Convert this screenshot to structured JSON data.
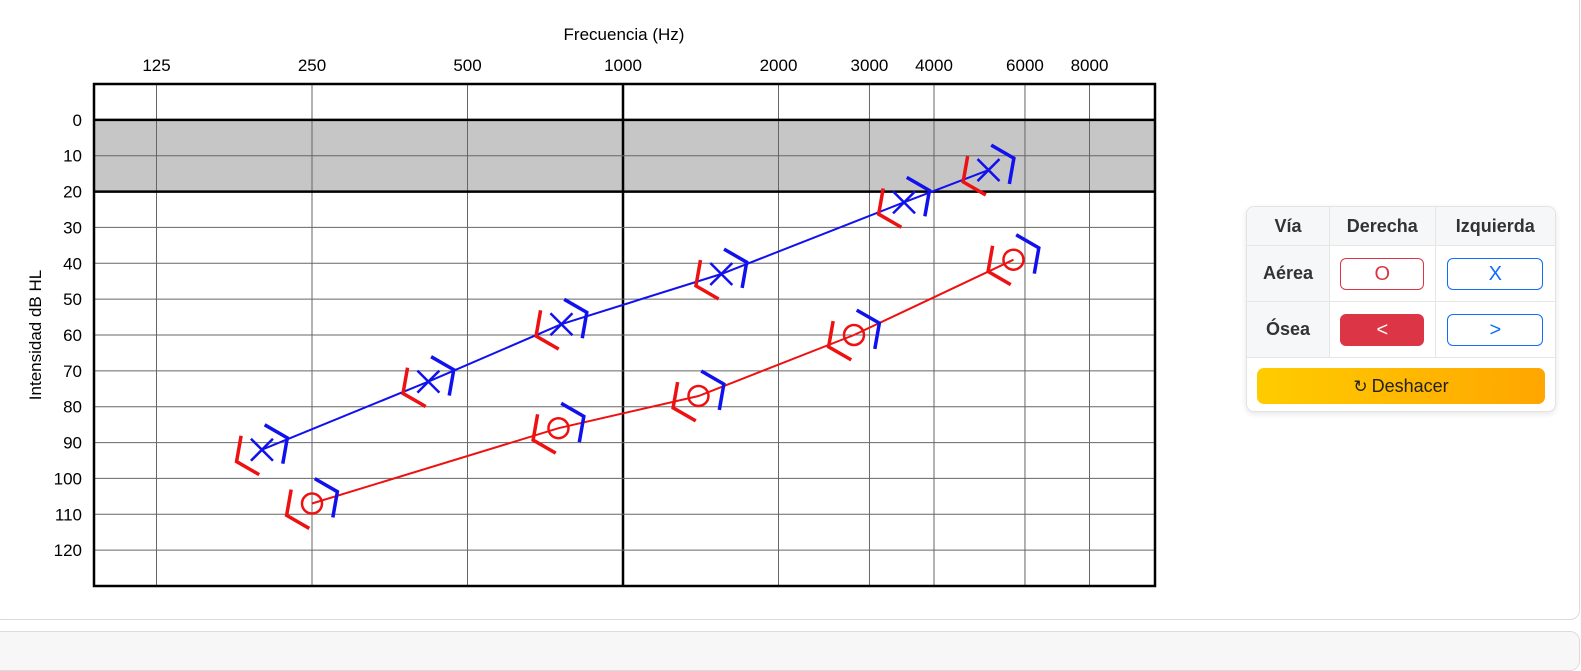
{
  "audiogram": {
    "title": "Frecuencia (Hz)",
    "ylabel": "Intensidad dB HL",
    "freq_ticks": [
      "125",
      "250",
      "500",
      "1000",
      "2000",
      "3000",
      "4000",
      "6000",
      "8000"
    ],
    "db_ticks": [
      "0",
      "10",
      "20",
      "30",
      "40",
      "50",
      "60",
      "70",
      "80",
      "90",
      "100",
      "110",
      "120"
    ],
    "colors": {
      "right": "#ee1111",
      "left": "#1111ee"
    }
  },
  "chart_data": {
    "type": "line",
    "x_scale": "log",
    "x_ticks": [
      125,
      250,
      500,
      1000,
      2000,
      3000,
      4000,
      6000,
      8000
    ],
    "y_ticks": [
      0,
      10,
      20,
      30,
      40,
      50,
      60,
      70,
      80,
      90,
      100,
      110,
      120
    ],
    "ylim": [
      -10,
      130
    ],
    "y_inverted": true,
    "shaded_band": [
      0,
      20
    ],
    "grid": true,
    "series": [
      {
        "ear": "right",
        "symbol": "O",
        "color": "#ee1111",
        "x": [
          250,
          750,
          1400,
          2800,
          5700
        ],
        "y": [
          107,
          86,
          77,
          60,
          39
        ]
      },
      {
        "ear": "left",
        "symbol": "X",
        "color": "#1111ee",
        "x": [
          200,
          420,
          760,
          1550,
          3500,
          5100
        ],
        "y": [
          92,
          73,
          57,
          43,
          23,
          14
        ]
      }
    ]
  },
  "panel": {
    "headers": [
      "Vía",
      "Derecha",
      "Izquierda"
    ],
    "rows": [
      {
        "label": "Aérea",
        "right": "O",
        "left": "X"
      },
      {
        "label": "Ósea",
        "right": "<",
        "left": ">"
      }
    ],
    "undo_label": "Deshacer",
    "undo_icon": "↻"
  }
}
